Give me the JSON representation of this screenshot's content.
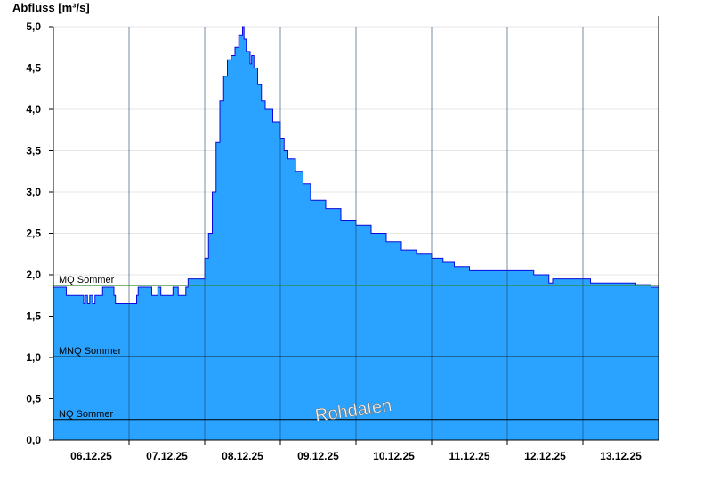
{
  "chart_data": {
    "type": "area",
    "ylabel": "Abfluss [m³/s]",
    "ylim": [
      0,
      5
    ],
    "yticks": [
      "0,0",
      "0,5",
      "1,0",
      "1,5",
      "2,0",
      "2,5",
      "3,0",
      "3,5",
      "4,0",
      "4,5",
      "5,0"
    ],
    "xlim": [
      0,
      8
    ],
    "xticks": [
      {
        "pos": 0.5,
        "label": "06.12.25"
      },
      {
        "pos": 1.5,
        "label": "07.12.25"
      },
      {
        "pos": 2.5,
        "label": "08.12.25"
      },
      {
        "pos": 3.5,
        "label": "09.12.25"
      },
      {
        "pos": 4.5,
        "label": "10.12.25"
      },
      {
        "pos": 5.5,
        "label": "11.12.25"
      },
      {
        "pos": 6.5,
        "label": "12.12.25"
      },
      {
        "pos": 7.5,
        "label": "13.12.25"
      }
    ],
    "day_separators": [
      1,
      2,
      3,
      4,
      5,
      6,
      7
    ],
    "grid": true,
    "area_color": "#29a3ff",
    "line_color": "#0a0adc",
    "reference_lines": [
      {
        "label": "MQ Sommer",
        "value": 1.87,
        "color": "#2e8b2e"
      },
      {
        "label": "MNQ Sommer",
        "value": 1.01,
        "color": "#000000"
      },
      {
        "label": "NQ Sommer",
        "value": 0.25,
        "color": "#000000"
      }
    ],
    "watermark": "Rohdaten",
    "x": [
      0.0,
      0.15,
      0.17,
      0.38,
      0.4,
      0.42,
      0.45,
      0.48,
      0.52,
      0.55,
      0.62,
      0.65,
      0.8,
      0.82,
      0.88,
      0.9,
      1.05,
      1.1,
      1.12,
      1.3,
      1.38,
      1.42,
      1.55,
      1.58,
      1.65,
      1.68,
      1.75,
      1.78,
      2.0,
      2.05,
      2.1,
      2.15,
      2.2,
      2.25,
      2.3,
      2.35,
      2.4,
      2.45,
      2.5,
      2.52,
      2.55,
      2.6,
      2.62,
      2.65,
      2.7,
      2.75,
      2.8,
      2.9,
      3.0,
      3.05,
      3.1,
      3.2,
      3.3,
      3.4,
      3.6,
      3.8,
      4.0,
      4.2,
      4.4,
      4.6,
      4.8,
      5.0,
      5.15,
      5.3,
      5.5,
      5.7,
      5.9,
      6.1,
      6.35,
      6.5,
      6.55,
      6.6,
      6.7,
      6.9,
      7.1,
      7.3,
      7.5,
      7.7,
      7.9,
      8.0
    ],
    "y": [
      1.85,
      1.85,
      1.75,
      1.75,
      1.65,
      1.75,
      1.65,
      1.75,
      1.65,
      1.75,
      1.75,
      1.85,
      1.75,
      1.65,
      1.65,
      1.65,
      1.65,
      1.75,
      1.85,
      1.75,
      1.85,
      1.75,
      1.75,
      1.85,
      1.75,
      1.75,
      1.85,
      1.95,
      2.2,
      2.5,
      3.0,
      3.6,
      4.1,
      4.4,
      4.6,
      4.65,
      4.75,
      4.9,
      5.0,
      4.85,
      4.7,
      4.55,
      4.65,
      4.5,
      4.3,
      4.1,
      4.0,
      3.85,
      3.65,
      3.5,
      3.4,
      3.25,
      3.1,
      2.9,
      2.8,
      2.65,
      2.6,
      2.5,
      2.4,
      2.3,
      2.25,
      2.2,
      2.15,
      2.1,
      2.05,
      2.05,
      2.05,
      2.05,
      2.0,
      2.0,
      1.9,
      1.95,
      1.95,
      1.95,
      1.9,
      1.9,
      1.9,
      1.88,
      1.85,
      1.75
    ]
  }
}
